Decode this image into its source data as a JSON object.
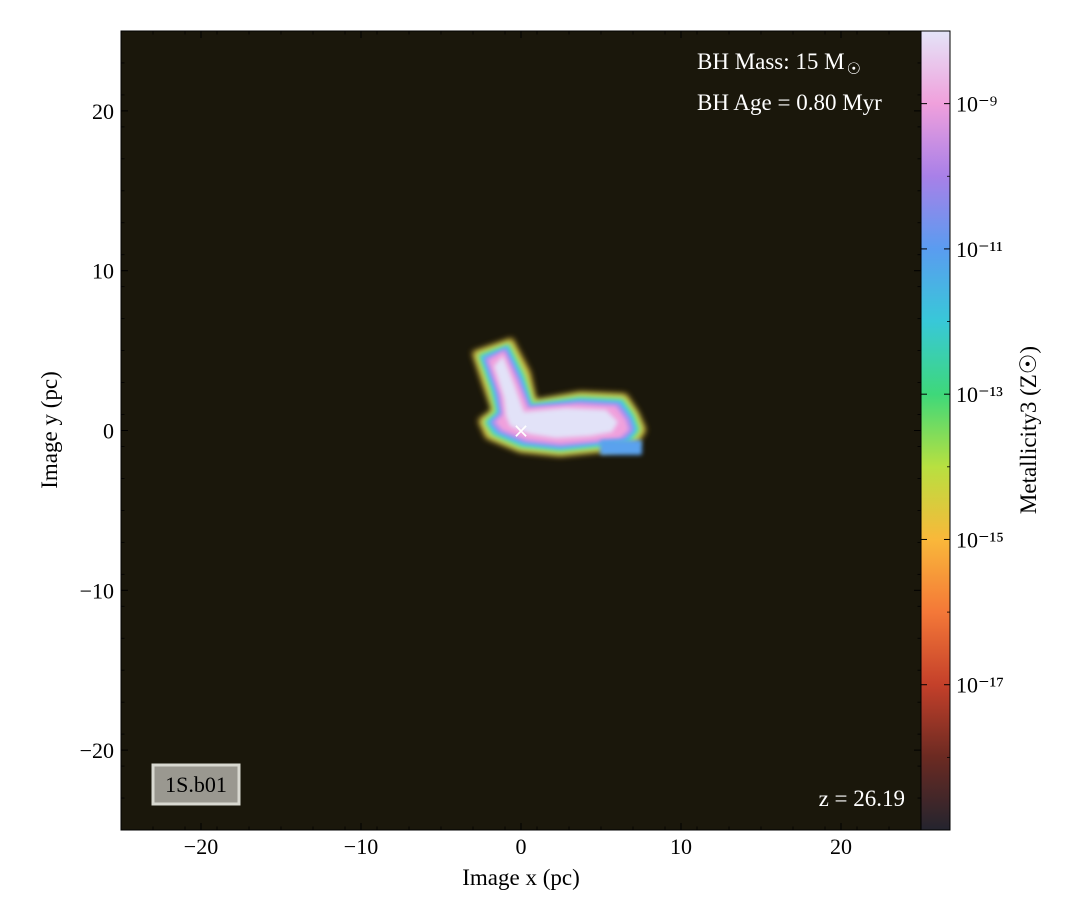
{
  "chart_data": {
    "type": "heatmap",
    "xlabel": "Image x  (pc)",
    "ylabel": "Image y  (pc)",
    "xlim": [
      -25,
      25
    ],
    "ylim": [
      -25,
      25
    ],
    "xticks": [
      -20,
      -10,
      0,
      10,
      20
    ],
    "xtick_labels": [
      "−20",
      "−10",
      "0",
      "10",
      "20"
    ],
    "yticks": [
      -20,
      -10,
      0,
      10,
      20
    ],
    "ytick_labels": [
      "−20",
      "−10",
      "0",
      "10",
      "20"
    ],
    "background_color": "#1a170b",
    "colorbar": {
      "label": "Metallicity3  (Z☉)",
      "scale": "log",
      "range_exponent": [
        -19,
        -8
      ],
      "tick_exponents": [
        -9,
        -11,
        -13,
        -15,
        -17
      ],
      "tick_labels": [
        "10⁻⁹",
        "10⁻¹¹",
        "10⁻¹³",
        "10⁻¹⁵",
        "10⁻¹⁷"
      ],
      "colormap_stops": [
        "#24242e",
        "#6b2a22",
        "#c4402a",
        "#f47838",
        "#f9b83a",
        "#b8e040",
        "#3ed87a",
        "#38c8d8",
        "#5a9cf0",
        "#a880e8",
        "#f0a0dc",
        "#e4e4f8"
      ]
    },
    "marker": {
      "symbol": "×",
      "x": 0,
      "y": 0,
      "color": "#ffffff"
    },
    "plume_metallicity_exponent": -8.6,
    "annotations": {
      "bh_mass_prefix": "BH Mass: 15 M",
      "bh_mass_symbol": "☉",
      "bh_age": "BH Age = 0.80 Myr",
      "redshift": "z = 26.19",
      "label_box": "1S.b01"
    }
  }
}
